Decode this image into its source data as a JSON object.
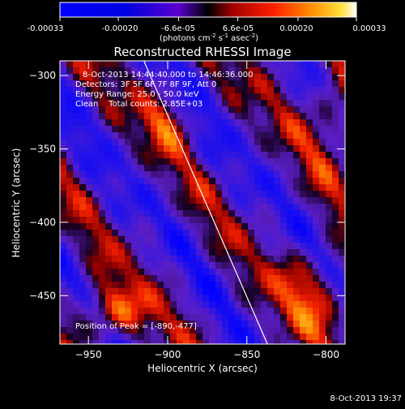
{
  "colorbar": {
    "tick_labels": [
      "-0.00033",
      "-0.00020",
      "-6.6e-05",
      "6.6e-05",
      "0.00020",
      "0.00033"
    ],
    "tick_values": [
      -0.00033,
      -0.0002,
      -6.6e-05,
      6.6e-05,
      0.0002,
      0.00033
    ],
    "range": [
      -0.00033,
      0.00033
    ],
    "units_main": "(photons cm",
    "units_exp1": "-2",
    "units_mid": " s",
    "units_exp2": "-1",
    "units_tail": " asec",
    "units_exp3": "-2",
    "units_close": ")"
  },
  "chart_data": {
    "type": "heatmap",
    "title": "Reconstructed RHESSI Image",
    "xlabel": "Heliocentric X (arcsec)",
    "ylabel": "Heliocentric Y (arcsec)",
    "xlim": [
      -968,
      -788
    ],
    "ylim": [
      -483,
      -290
    ],
    "xticks": [
      -950,
      -900,
      -850,
      -800
    ],
    "yticks": [
      -300,
      -350,
      -400,
      -450
    ],
    "info_lines": [
      "8-Oct-2013 14:44:40.000 to 14:46:36.000",
      "Detectors: 3F 5F 6F 7F 8F 9F, Att 0",
      "Energy Range: 25.0 - 50.0 keV",
      "Clean    Total counts: 2.85E+03"
    ],
    "peak_label": "Position of Peak = [-890,-477]",
    "peak_position": [
      -890,
      -477
    ],
    "limb_line": {
      "x": [
        -915,
        -837
      ],
      "y": [
        -290,
        -483
      ]
    }
  },
  "timestamp": "8-Oct-2013 19:37"
}
